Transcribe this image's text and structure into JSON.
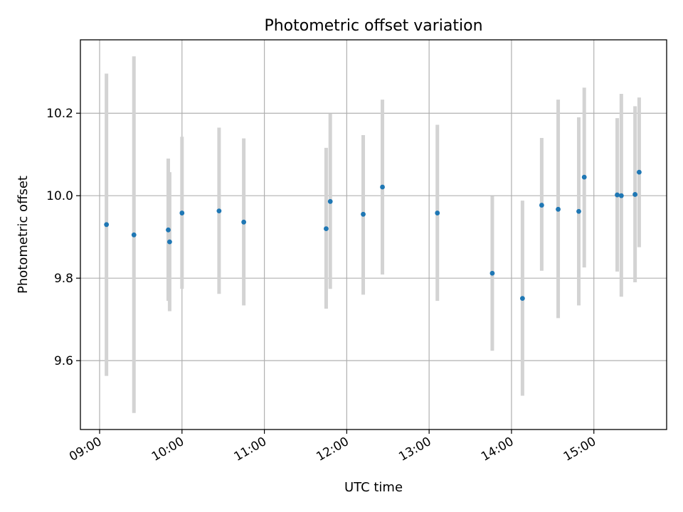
{
  "chart_data": {
    "type": "scatter",
    "title": "Photometric offset variation",
    "xlabel": "UTC time",
    "ylabel": "Photometric offset",
    "x_axis_kind": "time",
    "xlim": [
      "08:46",
      "15:53"
    ],
    "ylim": [
      9.433,
      10.378
    ],
    "grid": true,
    "x_ticks": [
      "09:00",
      "10:00",
      "11:00",
      "12:00",
      "13:00",
      "14:00",
      "15:00"
    ],
    "y_ticks": [
      9.6,
      9.8,
      10.0,
      10.2
    ],
    "y_tick_labels": [
      "9.6",
      "9.8",
      "10.0",
      "10.2"
    ],
    "colors": {
      "point": "#1f77b4",
      "error_bar": "#d3d3d3"
    },
    "series": [
      {
        "points": [
          {
            "t": "09:05",
            "y": 9.93,
            "lo": 9.563,
            "hi": 10.296
          },
          {
            "t": "09:25",
            "y": 9.905,
            "lo": 9.473,
            "hi": 10.338
          },
          {
            "t": "09:50",
            "y": 9.917,
            "lo": 9.745,
            "hi": 10.09
          },
          {
            "t": "09:51",
            "y": 9.888,
            "lo": 9.72,
            "hi": 10.057
          },
          {
            "t": "10:00",
            "y": 9.958,
            "lo": 9.774,
            "hi": 10.143
          },
          {
            "t": "10:27",
            "y": 9.963,
            "lo": 9.762,
            "hi": 10.165
          },
          {
            "t": "10:45",
            "y": 9.936,
            "lo": 9.734,
            "hi": 10.139
          },
          {
            "t": "11:45",
            "y": 9.92,
            "lo": 9.726,
            "hi": 10.116
          },
          {
            "t": "11:48",
            "y": 9.986,
            "lo": 9.774,
            "hi": 10.199
          },
          {
            "t": "12:12",
            "y": 9.955,
            "lo": 9.76,
            "hi": 10.147
          },
          {
            "t": "12:26",
            "y": 10.021,
            "lo": 9.809,
            "hi": 10.233
          },
          {
            "t": "13:06",
            "y": 9.958,
            "lo": 9.745,
            "hi": 10.172
          },
          {
            "t": "13:46",
            "y": 9.812,
            "lo": 9.624,
            "hi": 9.999
          },
          {
            "t": "14:08",
            "y": 9.751,
            "lo": 9.515,
            "hi": 9.988
          },
          {
            "t": "14:22",
            "y": 9.977,
            "lo": 9.818,
            "hi": 10.14
          },
          {
            "t": "14:34",
            "y": 9.967,
            "lo": 9.703,
            "hi": 10.233
          },
          {
            "t": "14:49",
            "y": 9.962,
            "lo": 9.734,
            "hi": 10.19
          },
          {
            "t": "14:53",
            "y": 10.045,
            "lo": 9.826,
            "hi": 10.262
          },
          {
            "t": "15:17",
            "y": 10.002,
            "lo": 9.816,
            "hi": 10.188
          },
          {
            "t": "15:20",
            "y": 10.0,
            "lo": 9.755,
            "hi": 10.247
          },
          {
            "t": "15:30",
            "y": 10.003,
            "lo": 9.79,
            "hi": 10.217
          },
          {
            "t": "15:33",
            "y": 10.057,
            "lo": 9.875,
            "hi": 10.238
          }
        ]
      }
    ]
  }
}
